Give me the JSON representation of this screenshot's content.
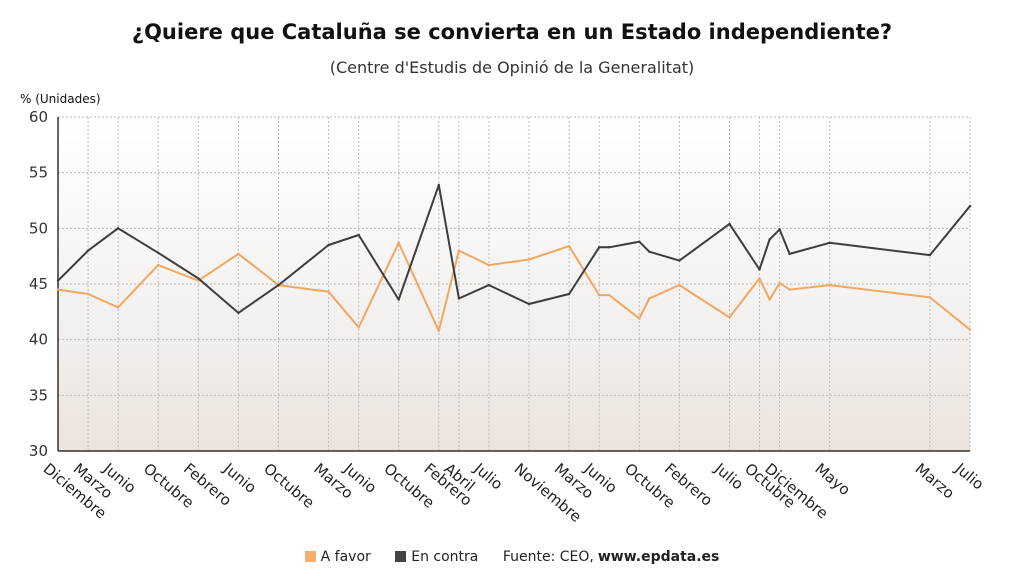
{
  "title": "¿Quiere que Cataluña se convierta en un Estado independiente?",
  "subtitle": "(Centre d'Estudis de Opinió de la Generalitat)",
  "legend": {
    "favor_label": "A favor",
    "contra_label": "En contra",
    "source_label": "Fuente: CEO,",
    "source_site": "www.epdata.es"
  },
  "colors": {
    "favor": "#f0a860",
    "contra": "#3d3d3d",
    "favor_swatch": "#f4b06b",
    "contra_swatch": "#444444",
    "grid": "#bbbbbb"
  },
  "chart_data": {
    "type": "line",
    "title": "¿Quiere que Cataluña se convierta en un Estado independiente?",
    "subtitle": "(Centre d'Estudis de Opinió de la Generalitat)",
    "ylabel": "% (Unidades)",
    "ylim": [
      30,
      60
    ],
    "yticks": [
      30,
      35,
      40,
      45,
      50,
      55,
      60
    ],
    "grid": true,
    "legend_position": "bottom",
    "x": [
      "2014-12",
      "2015-03",
      "2015-06",
      "2015-10",
      "2016-02",
      "2016-06",
      "2016-10",
      "2017-03",
      "2017-06",
      "2017-10",
      "2018-02",
      "2018-04",
      "2018-07",
      "2018-11",
      "2019-03",
      "2019-06",
      "2019-07",
      "2019-10",
      "2019-11",
      "2020-02",
      "2020-07",
      "2020-10",
      "2020-11",
      "2020-12",
      "2021-01",
      "2021-05",
      "2022-03",
      "2022-07"
    ],
    "xticks": [
      {
        "label": "Diciembre",
        "index": 0
      },
      {
        "label": "Marzo",
        "index": 1
      },
      {
        "label": "Junio",
        "index": 2
      },
      {
        "label": "Octubre",
        "index": 3
      },
      {
        "label": "Febrero",
        "index": 4
      },
      {
        "label": "Junio",
        "index": 5
      },
      {
        "label": "Octubre",
        "index": 6
      },
      {
        "label": "Marzo",
        "index": 7
      },
      {
        "label": "Junio",
        "index": 8
      },
      {
        "label": "Octubre",
        "index": 9
      },
      {
        "label": "Febrero",
        "index": 10
      },
      {
        "label": "Abril",
        "index": 11
      },
      {
        "label": "Julio",
        "index": 12
      },
      {
        "label": "Noviembre",
        "index": 13
      },
      {
        "label": "Marzo",
        "index": 14
      },
      {
        "label": "Junio",
        "index": 15
      },
      {
        "label": "Octubre",
        "index": 17
      },
      {
        "label": "Febrero",
        "index": 19
      },
      {
        "label": "Julio",
        "index": 20
      },
      {
        "label": "Octubre",
        "index": 21
      },
      {
        "label": "Diciembre",
        "index": 23
      },
      {
        "label": "Mayo",
        "index": 25
      },
      {
        "label": "Marzo",
        "index": 26
      },
      {
        "label": "Julio",
        "index": 27
      }
    ],
    "series": [
      {
        "name": "A favor",
        "values": [
          44.5,
          44.1,
          42.9,
          46.7,
          45.3,
          47.7,
          44.9,
          44.3,
          41.1,
          48.7,
          40.8,
          48.0,
          46.7,
          47.2,
          48.4,
          44.0,
          44.0,
          41.9,
          43.7,
          44.9,
          42.0,
          45.5,
          43.6,
          45.1,
          44.5,
          44.9,
          43.8,
          40.9
        ]
      },
      {
        "name": "En contra",
        "values": [
          45.3,
          48.0,
          50.0,
          47.8,
          45.5,
          42.4,
          44.9,
          48.5,
          49.4,
          43.6,
          53.9,
          43.7,
          44.9,
          43.2,
          44.1,
          48.3,
          48.3,
          48.8,
          47.9,
          47.1,
          50.4,
          46.3,
          49.0,
          49.9,
          47.7,
          48.7,
          47.6,
          52.0
        ]
      }
    ]
  }
}
